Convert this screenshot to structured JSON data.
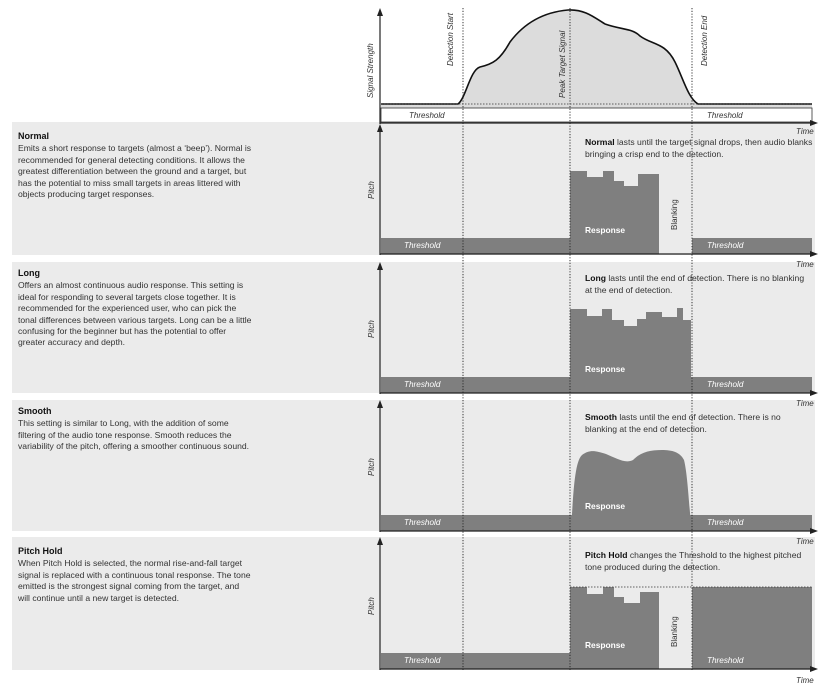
{
  "top_chart": {
    "y_axis_label": "Signal Strength",
    "time_label": "Time",
    "threshold_label": "Threshold",
    "markers": [
      "Detection Start",
      "Peak Target Signal",
      "Detection End"
    ]
  },
  "panels": [
    {
      "title": "Normal",
      "description": "Emits a short response to targets (almost a ‘beep’). Normal is recommended for general detecting conditions. It allows the greatest differentiation between the ground and a target, but has the potential to miss small targets in areas littered with objects producing target responses.",
      "note_bold": "Normal",
      "note_text": " lasts until the target signal drops, then audio blanks bringing a crisp end to the detection.",
      "y_label": "Pitch",
      "threshold_left": "Threshold",
      "threshold_right": "Threshold",
      "response_label": "Response",
      "blanking_label": "Blanking",
      "time_label": "Time"
    },
    {
      "title": "Long",
      "description": "Offers an almost continuous audio response. This setting is ideal for responding to several targets close together. It is recommended for the experienced user, who can pick the tonal differences between various targets. Long can be a little confusing for the beginner but has the potential to offer greater accuracy and depth.",
      "note_bold": "Long",
      "note_text": " lasts until the end of detection. There is no blanking at the end of detection.",
      "y_label": "Pitch",
      "threshold_left": "Threshold",
      "threshold_right": "Threshold",
      "response_label": "Response",
      "time_label": "Time"
    },
    {
      "title": "Smooth",
      "description": "This setting is similar to Long, with the addition of some filtering of the audio tone response. Smooth reduces the variability of the pitch, offering a smoother continuous sound.",
      "note_bold": "Smooth",
      "note_text": " lasts until the end of detection. There is no blanking at the end of detection.",
      "y_label": "Pitch",
      "threshold_left": "Threshold",
      "threshold_right": "Threshold",
      "response_label": "Response",
      "time_label": "Time"
    },
    {
      "title": "Pitch Hold",
      "description": "When Pitch Hold is selected, the normal rise-and-fall target signal is replaced with a continuous tonal response. The tone emitted is the strongest signal coming from the target, and will continue until a new target is detected.",
      "note_bold": "Pitch Hold",
      "note_text": " changes the Threshold to the highest pitched tone produced during the detection.",
      "y_label": "Pitch",
      "threshold_left": "Threshold",
      "threshold_right": "Threshold",
      "response_label": "Response",
      "blanking_label": "Blanking",
      "time_label": "Time"
    }
  ],
  "colors": {
    "panel_bg": "#ebebeb",
    "fill_dark": "#7f7f7f",
    "fill_light": "#dcdcdc",
    "axis": "#222222"
  }
}
